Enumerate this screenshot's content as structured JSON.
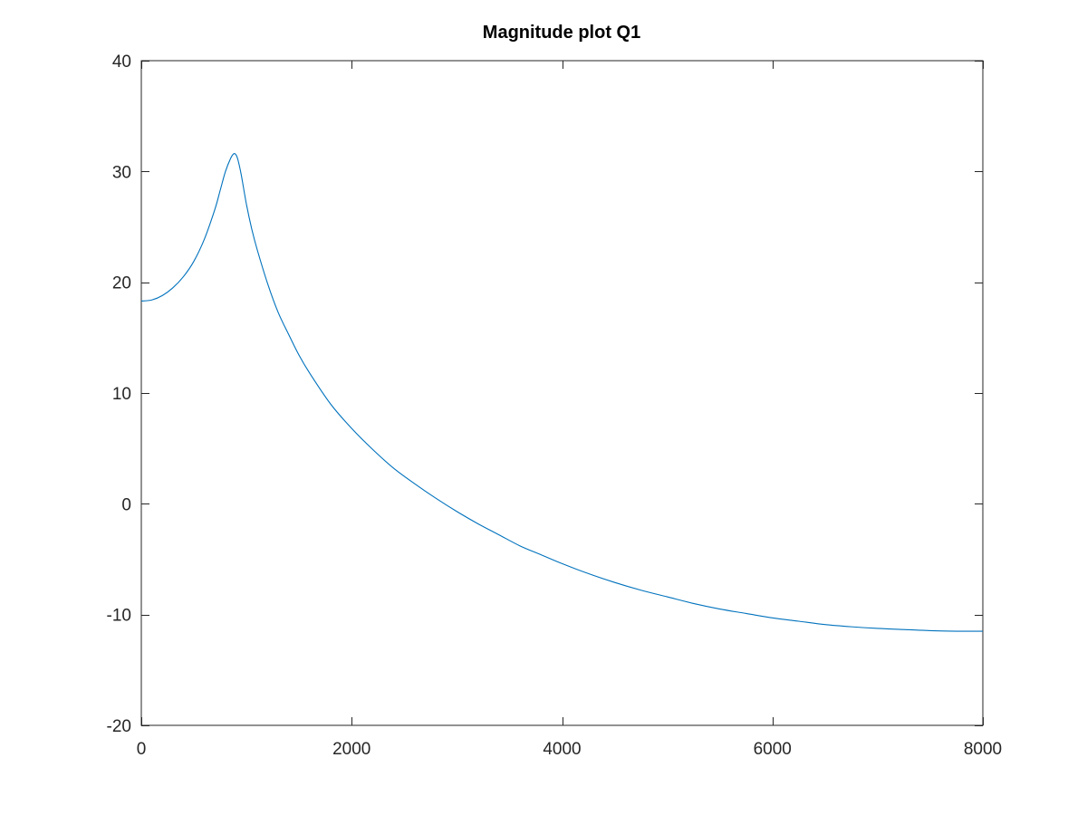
{
  "chart_data": {
    "type": "line",
    "title": "Magnitude plot Q1",
    "xlabel": "",
    "ylabel": "",
    "xlim": [
      0,
      8000
    ],
    "ylim": [
      -20,
      40
    ],
    "xticks": [
      0,
      2000,
      4000,
      6000,
      8000
    ],
    "yticks": [
      -20,
      -10,
      0,
      10,
      20,
      30,
      40
    ],
    "xtick_labels": [
      "0",
      "2000",
      "4000",
      "6000",
      "8000"
    ],
    "ytick_labels": [
      "-20",
      "-10",
      "0",
      "10",
      "20",
      "30",
      "40"
    ],
    "grid": false,
    "box": true,
    "series": [
      {
        "color": "#0072bd",
        "x": [
          0,
          100,
          200,
          300,
          400,
          500,
          600,
          700,
          750,
          800,
          850,
          880,
          900,
          920,
          950,
          1000,
          1050,
          1100,
          1200,
          1300,
          1400,
          1500,
          1600,
          1800,
          2000,
          2200,
          2400,
          2600,
          2800,
          3000,
          3200,
          3400,
          3600,
          3800,
          4000,
          4250,
          4500,
          4750,
          5000,
          5250,
          5500,
          5750,
          6000,
          6250,
          6500,
          6750,
          7000,
          7250,
          7500,
          7750,
          8000
        ],
        "y": [
          18.3,
          18.4,
          18.8,
          19.5,
          20.5,
          21.9,
          23.9,
          26.6,
          28.3,
          30.0,
          31.2,
          31.6,
          31.5,
          31.0,
          29.7,
          27.0,
          24.8,
          23.0,
          19.9,
          17.3,
          15.3,
          13.4,
          11.8,
          9.0,
          6.8,
          4.9,
          3.2,
          1.8,
          0.5,
          -0.7,
          -1.8,
          -2.8,
          -3.8,
          -4.6,
          -5.4,
          -6.3,
          -7.1,
          -7.8,
          -8.4,
          -9.0,
          -9.5,
          -9.9,
          -10.3,
          -10.6,
          -10.9,
          -11.1,
          -11.25,
          -11.35,
          -11.45,
          -11.5,
          -11.5
        ]
      }
    ]
  }
}
